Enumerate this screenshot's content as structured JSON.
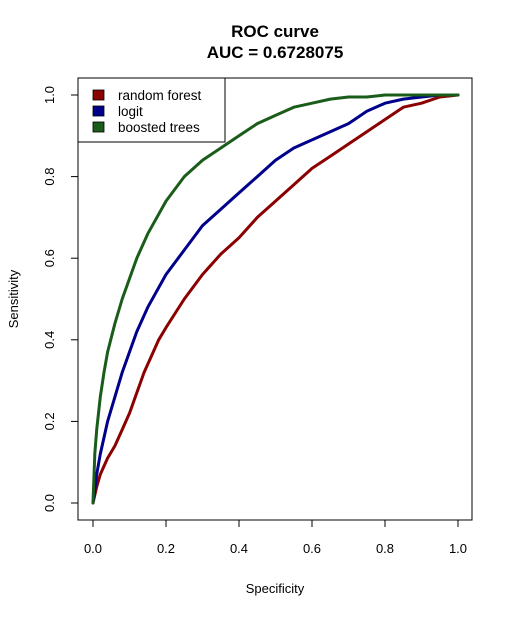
{
  "chart_data": {
    "type": "line",
    "title": "ROC curve",
    "subtitle": "AUC = 0.6728075",
    "xlabel": "Specificity",
    "ylabel": "Sensitivity",
    "xlim": [
      0.0,
      1.0
    ],
    "ylim": [
      0.0,
      1.0
    ],
    "x_ticks": [
      "0.0",
      "0.2",
      "0.4",
      "0.6",
      "0.8",
      "1.0"
    ],
    "y_ticks": [
      "0.0",
      "0.2",
      "0.4",
      "0.6",
      "0.8",
      "1.0"
    ],
    "grid": false,
    "legend_position": "top-left",
    "series": [
      {
        "name": "random forest",
        "color": "#8b0000",
        "x": [
          0.0,
          0.01,
          0.02,
          0.04,
          0.06,
          0.08,
          0.1,
          0.12,
          0.14,
          0.16,
          0.18,
          0.2,
          0.25,
          0.3,
          0.35,
          0.4,
          0.45,
          0.5,
          0.55,
          0.6,
          0.65,
          0.7,
          0.75,
          0.8,
          0.85,
          0.9,
          0.95,
          1.0
        ],
        "y": [
          0.0,
          0.04,
          0.07,
          0.11,
          0.14,
          0.18,
          0.22,
          0.27,
          0.32,
          0.36,
          0.4,
          0.43,
          0.5,
          0.56,
          0.61,
          0.65,
          0.7,
          0.74,
          0.78,
          0.82,
          0.85,
          0.88,
          0.91,
          0.94,
          0.97,
          0.98,
          0.995,
          1.0
        ]
      },
      {
        "name": "logit",
        "color": "#00008b",
        "x": [
          0.0,
          0.01,
          0.02,
          0.04,
          0.06,
          0.08,
          0.1,
          0.12,
          0.15,
          0.2,
          0.25,
          0.3,
          0.35,
          0.4,
          0.45,
          0.5,
          0.55,
          0.6,
          0.65,
          0.7,
          0.75,
          0.8,
          0.85,
          0.9,
          0.95,
          1.0
        ],
        "y": [
          0.0,
          0.07,
          0.12,
          0.2,
          0.26,
          0.32,
          0.37,
          0.42,
          0.48,
          0.56,
          0.62,
          0.68,
          0.72,
          0.76,
          0.8,
          0.84,
          0.87,
          0.89,
          0.91,
          0.93,
          0.96,
          0.98,
          0.99,
          0.995,
          1.0,
          1.0
        ]
      },
      {
        "name": "boosted trees",
        "color": "#1a5c1a",
        "x": [
          0.0,
          0.005,
          0.01,
          0.02,
          0.03,
          0.04,
          0.06,
          0.08,
          0.1,
          0.12,
          0.15,
          0.2,
          0.25,
          0.3,
          0.35,
          0.4,
          0.45,
          0.5,
          0.55,
          0.6,
          0.65,
          0.7,
          0.75,
          0.8,
          0.9,
          1.0
        ],
        "y": [
          0.0,
          0.12,
          0.18,
          0.26,
          0.32,
          0.37,
          0.44,
          0.5,
          0.55,
          0.6,
          0.66,
          0.74,
          0.8,
          0.84,
          0.87,
          0.9,
          0.93,
          0.95,
          0.97,
          0.98,
          0.99,
          0.995,
          0.995,
          1.0,
          1.0,
          1.0
        ]
      }
    ]
  }
}
